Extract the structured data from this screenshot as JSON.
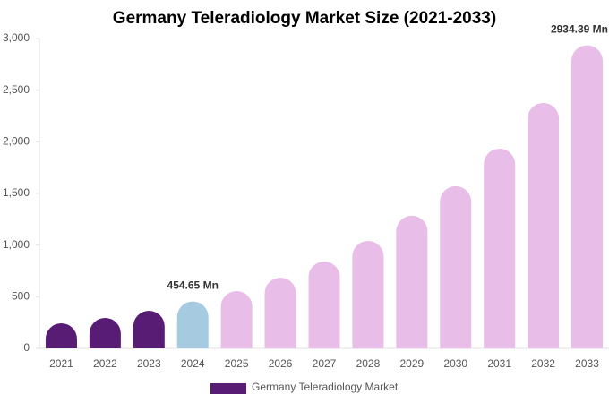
{
  "chart_data": {
    "type": "bar",
    "title": "Germany Teleradiology Market Size (2021-2033)",
    "categories": [
      "2021",
      "2022",
      "2023",
      "2024",
      "2025",
      "2026",
      "2027",
      "2028",
      "2029",
      "2030",
      "2031",
      "2032",
      "2033"
    ],
    "series": [
      {
        "name": "Germany Teleradiology Market",
        "color": "#581c74",
        "colors": [
          "#581c74",
          "#581c74",
          "#581c74",
          "#a6cbe0",
          "#e8bde8",
          "#e8bde8",
          "#e8bde8",
          "#e8bde8",
          "#e8bde8",
          "#e8bde8",
          "#e8bde8",
          "#e8bde8",
          "#e8bde8"
        ],
        "values": [
          243,
          295,
          364,
          454.65,
          555,
          685,
          841,
          1041,
          1284,
          1570,
          1934,
          2376,
          2934.39
        ],
        "value_labels": [
          null,
          null,
          null,
          "454.65 Mn",
          null,
          null,
          null,
          null,
          null,
          null,
          null,
          null,
          "2934.39 Mn"
        ]
      }
    ],
    "ylim": [
      0,
      3000
    ],
    "yticks": [
      0,
      500,
      {
        "value": 1000,
        "label": "1,000"
      },
      {
        "value": 1500,
        "label": "1,500"
      },
      {
        "value": 2000,
        "label": "2,000"
      },
      {
        "value": 2500,
        "label": "2,500"
      },
      {
        "value": 3000,
        "label": "3,000"
      }
    ],
    "grid": false
  }
}
